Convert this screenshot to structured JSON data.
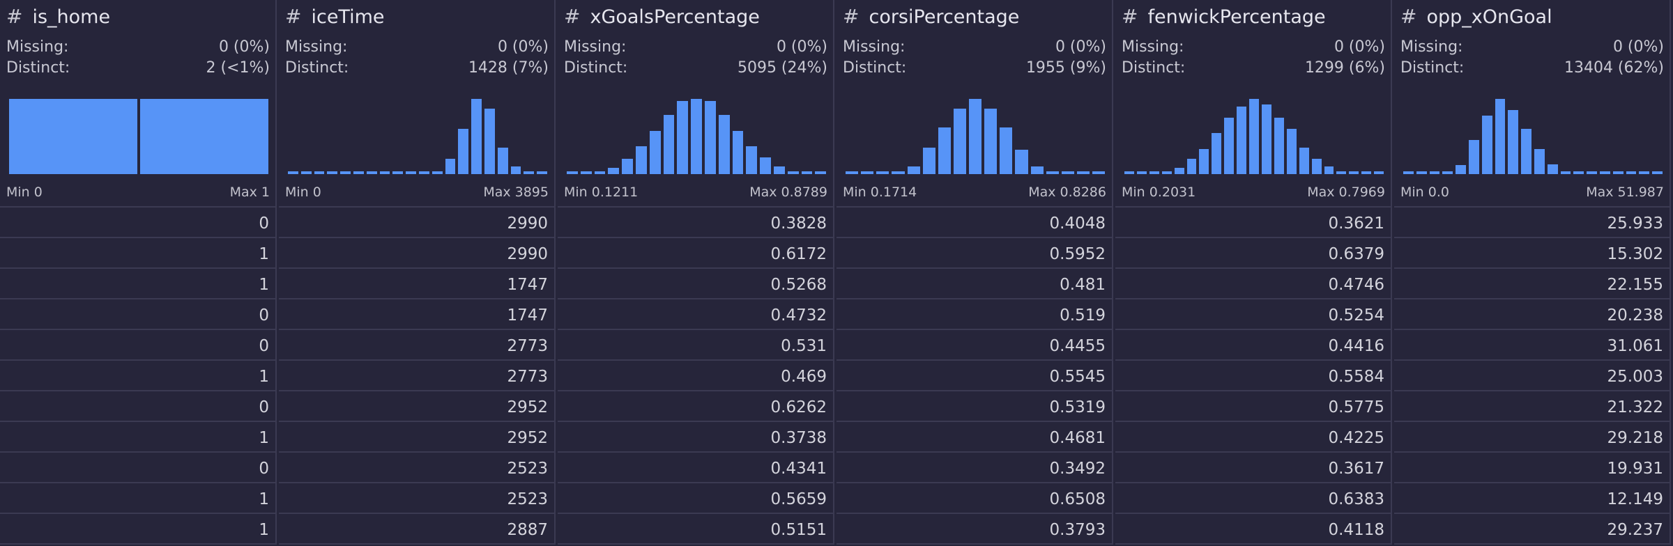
{
  "colors": {
    "background": "#26253a",
    "bar": "#5794f7",
    "border": "#3b3a52"
  },
  "labels": {
    "missing": "Missing:",
    "distinct": "Distinct:"
  },
  "columns": [
    {
      "name": "is_home",
      "type_icon": "#",
      "missing": "0 (0%)",
      "distinct": "2 (<1%)",
      "min": "Min 0",
      "max": "Max 1",
      "histogram": [
        1,
        1
      ],
      "rows": [
        "0",
        "1",
        "1",
        "0",
        "0",
        "1",
        "0",
        "1",
        "0",
        "1",
        "1"
      ]
    },
    {
      "name": "iceTime",
      "type_icon": "#",
      "missing": "0 (0%)",
      "distinct": "1428 (7%)",
      "min": "Min 0",
      "max": "Max 3895",
      "histogram": [
        0.03,
        0.03,
        0.03,
        0.03,
        0.03,
        0.03,
        0.03,
        0.03,
        0.03,
        0.03,
        0.03,
        0.03,
        0.2,
        0.6,
        1.0,
        0.87,
        0.35,
        0.1,
        0.03,
        0.03
      ],
      "rows": [
        "2990",
        "2990",
        "1747",
        "1747",
        "2773",
        "2773",
        "2952",
        "2952",
        "2523",
        "2523",
        "2887"
      ]
    },
    {
      "name": "xGoalsPercentage",
      "type_icon": "#",
      "missing": "0 (0%)",
      "distinct": "5095 (24%)",
      "min": "Min 0.1211",
      "max": "Max 0.8789",
      "histogram": [
        0.03,
        0.03,
        0.03,
        0.08,
        0.2,
        0.37,
        0.57,
        0.79,
        0.97,
        1.0,
        0.97,
        0.79,
        0.57,
        0.37,
        0.22,
        0.1,
        0.03,
        0.03,
        0.03
      ],
      "rows": [
        "0.3828",
        "0.6172",
        "0.5268",
        "0.4732",
        "0.531",
        "0.469",
        "0.6262",
        "0.3738",
        "0.4341",
        "0.5659",
        "0.5151"
      ]
    },
    {
      "name": "corsiPercentage",
      "type_icon": "#",
      "missing": "0 (0%)",
      "distinct": "1955 (9%)",
      "min": "Min 0.1714",
      "max": "Max 0.8286",
      "histogram": [
        0.03,
        0.03,
        0.03,
        0.03,
        0.1,
        0.35,
        0.62,
        0.87,
        1.0,
        0.87,
        0.62,
        0.32,
        0.1,
        0.03,
        0.03,
        0.03,
        0.03
      ],
      "rows": [
        "0.4048",
        "0.5952",
        "0.481",
        "0.519",
        "0.4455",
        "0.5545",
        "0.5319",
        "0.4681",
        "0.3492",
        "0.6508",
        "0.3793"
      ]
    },
    {
      "name": "fenwickPercentage",
      "type_icon": "#",
      "missing": "0 (0%)",
      "distinct": "1299 (6%)",
      "min": "Min 0.2031",
      "max": "Max 0.7969",
      "histogram": [
        0.03,
        0.03,
        0.03,
        0.03,
        0.08,
        0.2,
        0.33,
        0.55,
        0.75,
        0.9,
        1.0,
        0.93,
        0.75,
        0.6,
        0.35,
        0.2,
        0.1,
        0.03,
        0.03,
        0.03,
        0.03
      ],
      "rows": [
        "0.3621",
        "0.6379",
        "0.4746",
        "0.5254",
        "0.4416",
        "0.5584",
        "0.5775",
        "0.4225",
        "0.3617",
        "0.6383",
        "0.4118"
      ]
    },
    {
      "name": "opp_xOnGoal",
      "type_icon": "#",
      "missing": "0 (0%)",
      "distinct": "13404 (62%)",
      "min": "Min 0.0",
      "max": "Max 51.987",
      "histogram": [
        0.03,
        0.03,
        0.03,
        0.03,
        0.12,
        0.45,
        0.78,
        1.0,
        0.85,
        0.6,
        0.33,
        0.13,
        0.03,
        0.03,
        0.03,
        0.03,
        0.03,
        0.03,
        0.03,
        0.03
      ],
      "rows": [
        "25.933",
        "15.302",
        "22.155",
        "20.238",
        "31.061",
        "25.003",
        "21.322",
        "29.218",
        "19.931",
        "12.149",
        "29.237"
      ]
    }
  ]
}
